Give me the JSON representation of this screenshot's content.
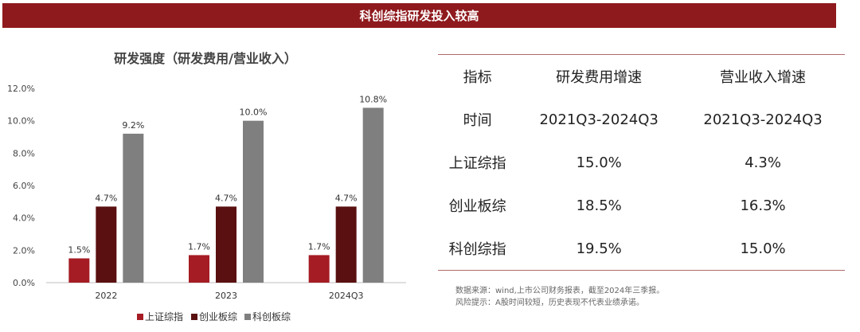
{
  "banner": {
    "title": "科创综指研发投入较高"
  },
  "chart_data": {
    "type": "bar",
    "title": "研发强度（研发费用/营业收入）",
    "categories": [
      "2022",
      "2023",
      "2024Q3"
    ],
    "series": [
      {
        "name": "上证综指",
        "values": [
          1.5,
          1.7,
          1.7
        ],
        "labels": [
          "1.5%",
          "1.7%",
          "1.7%"
        ],
        "color": "#a51c24"
      },
      {
        "name": "创业板综",
        "values": [
          4.7,
          4.7,
          4.7
        ],
        "labels": [
          "4.7%",
          "4.7%",
          "4.7%"
        ],
        "color": "#5a1010"
      },
      {
        "name": "科创板综",
        "values": [
          9.2,
          10.0,
          10.8
        ],
        "labels": [
          "9.2%",
          "10.0%",
          "10.8%"
        ],
        "color": "#7f7f7f"
      }
    ],
    "ylim": [
      0,
      12
    ],
    "yticks": [
      "0.0%",
      "2.0%",
      "4.0%",
      "6.0%",
      "8.0%",
      "10.0%",
      "12.0%"
    ],
    "xlabel": "",
    "ylabel": "",
    "grid": false,
    "legend": "bottom"
  },
  "table": {
    "header": [
      "指标",
      "研发费用增速",
      "营业收入增速"
    ],
    "rows": [
      [
        "时间",
        "2021Q3-2024Q3",
        "2021Q3-2024Q3"
      ],
      [
        "上证综指",
        "15.0%",
        "4.3%"
      ],
      [
        "创业板综",
        "18.5%",
        "16.3%"
      ],
      [
        "科创综指",
        "19.5%",
        "15.0%"
      ]
    ]
  },
  "notes": {
    "source": "数据来源：wind,上市公司财务报表，截至2024年三季报。",
    "risk": "风险提示：A股时间较短，历史表现不代表业绩承诺。"
  }
}
